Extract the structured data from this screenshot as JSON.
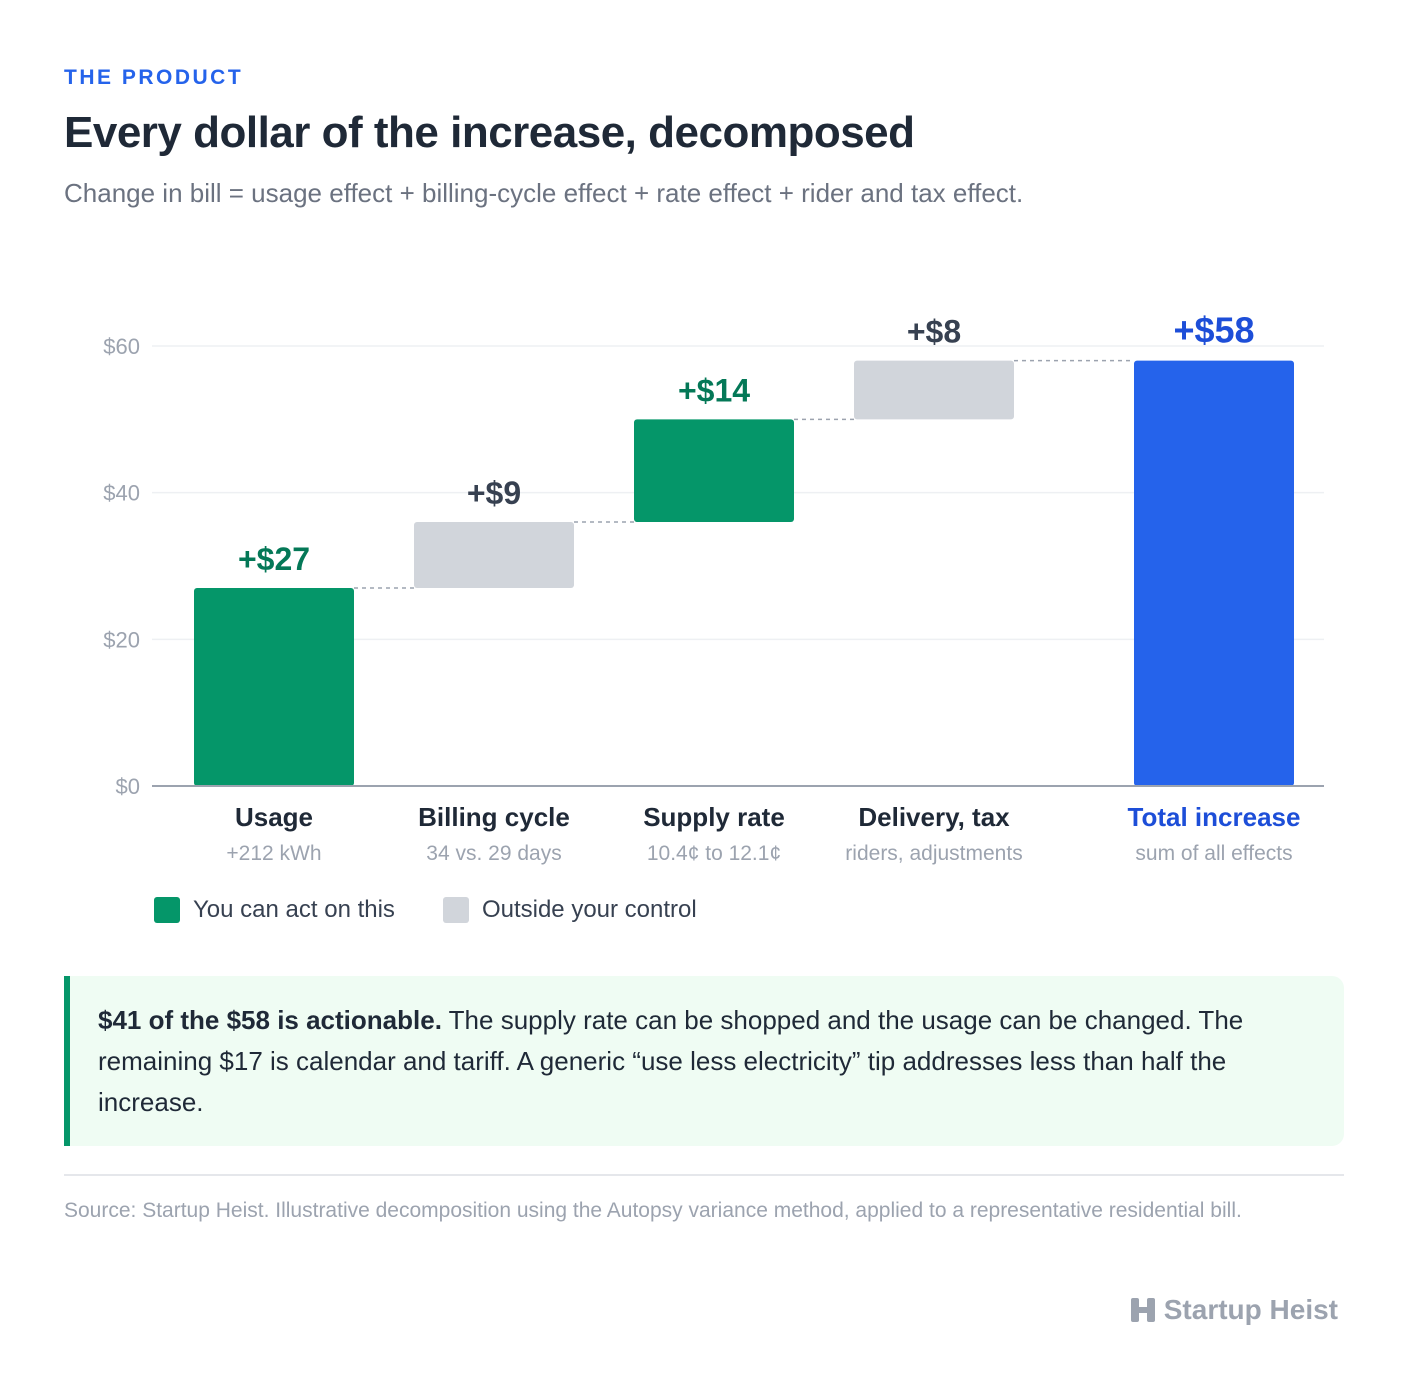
{
  "header": {
    "eyebrow": "THE PRODUCT",
    "title": "Every dollar of the increase, decomposed",
    "subtitle": "Change in bill = usage effect + billing-cycle effect + rate effect + rider and tax effect."
  },
  "chart_data": {
    "type": "bar",
    "subtype": "waterfall",
    "ylim": [
      0,
      60
    ],
    "yticks": [
      0,
      20,
      40,
      60
    ],
    "ytick_labels": [
      "$0",
      "$20",
      "$40",
      "$60"
    ],
    "grid": true,
    "bars": [
      {
        "category": "Usage",
        "detail": "+212 kWh",
        "value": 27,
        "start": 0,
        "end": 27,
        "label": "+$27",
        "group": "actionable"
      },
      {
        "category": "Billing cycle",
        "detail": "34 vs. 29 days",
        "value": 9,
        "start": 27,
        "end": 36,
        "label": "+$9",
        "group": "outside"
      },
      {
        "category": "Supply rate",
        "detail": "10.4¢ to 12.1¢",
        "value": 14,
        "start": 36,
        "end": 50,
        "label": "+$14",
        "group": "actionable"
      },
      {
        "category": "Delivery, tax",
        "detail": "riders, adjustments",
        "value": 8,
        "start": 50,
        "end": 58,
        "label": "+$8",
        "group": "outside"
      },
      {
        "category": "Total increase",
        "detail": "sum of all effects",
        "value": 58,
        "start": 0,
        "end": 58,
        "label": "+$58",
        "group": "total"
      }
    ],
    "colors": {
      "actionable": "#059669",
      "outside": "#d1d5db",
      "total": "#2563eb",
      "actionable_label": "#047857",
      "outside_label": "#374151",
      "total_label": "#1d4ed8"
    }
  },
  "legend": {
    "items": [
      {
        "label": "You can act on this",
        "color": "#059669"
      },
      {
        "label": "Outside your control",
        "color": "#d1d5db"
      }
    ]
  },
  "callout": {
    "bold": "$41 of the $58 is actionable.",
    "text": " The supply rate can be shopped and the usage can be changed. The remaining $17 is calendar and tariff. A generic “use less electricity” tip addresses less than half the increase."
  },
  "footer": {
    "source": "Source: Startup Heist. Illustrative decomposition using the Autopsy variance method, applied to a representative residential bill.",
    "brand": "Startup Heist",
    "brand_icon": "startup-heist-logo-icon"
  }
}
